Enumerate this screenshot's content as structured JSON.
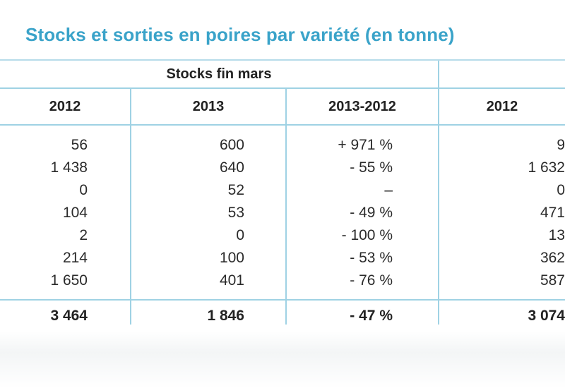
{
  "title": "Stocks et sorties en poires par variété (en tonne)",
  "group_headers": {
    "stocks": "Stocks fin mars"
  },
  "columns": [
    "2012",
    "2013",
    "2013-2012",
    "2012"
  ],
  "rows": [
    [
      "56",
      "600",
      "+ 971 %",
      "9"
    ],
    [
      "1 438",
      "640",
      "- 55 %",
      "1 632"
    ],
    [
      "0",
      "52",
      "–",
      "0"
    ],
    [
      "104",
      "53",
      "- 49 %",
      "471"
    ],
    [
      "2",
      "0",
      "- 100 %",
      "13"
    ],
    [
      "214",
      "100",
      "- 53 %",
      "362"
    ],
    [
      "1 650",
      "401",
      "- 76 %",
      "587"
    ]
  ],
  "total": [
    "3 464",
    "1 846",
    "- 47 %",
    "3 074"
  ],
  "colors": {
    "title": "#3aa3c9",
    "rules": "#9fd2e4"
  }
}
